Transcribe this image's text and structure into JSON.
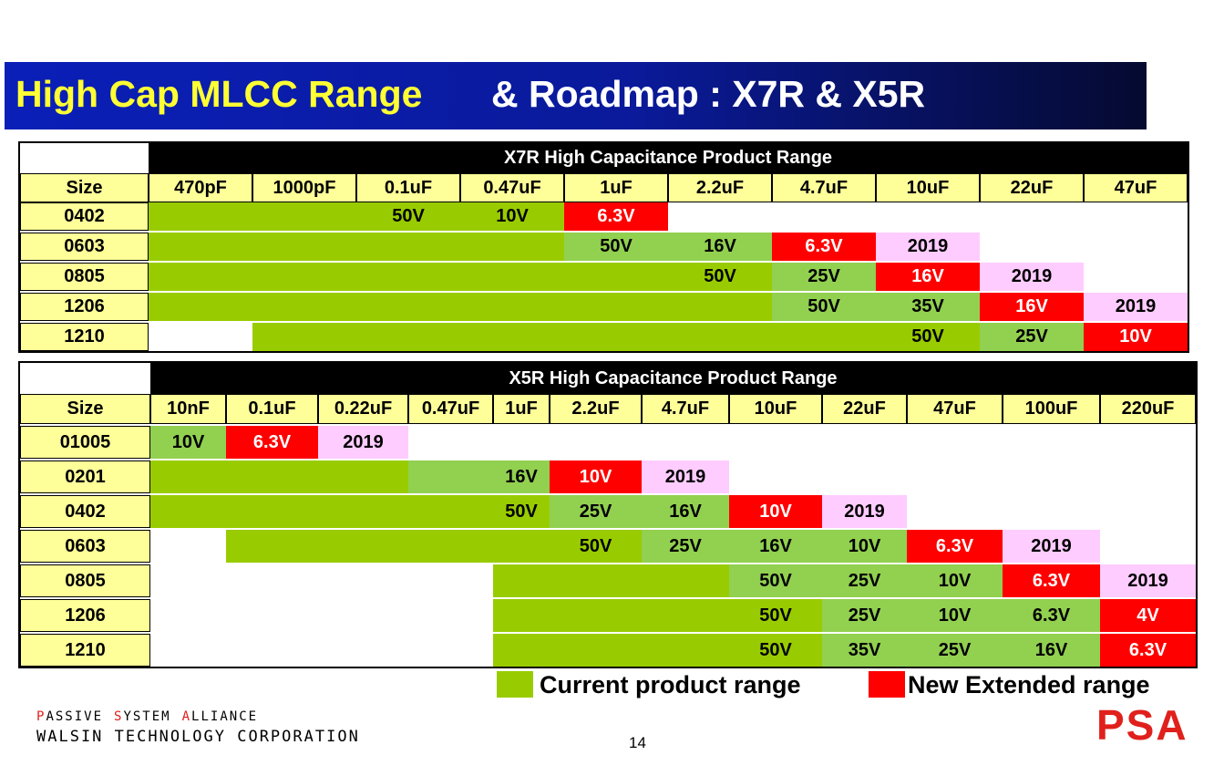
{
  "title": {
    "main": "High Cap MLCC Range",
    "sub": "& Roadmap : X7R & X5R"
  },
  "tables": [
    {
      "caption": "X7R  High Capacitance Product Range",
      "size_label": "Size",
      "columns": [
        "470pF",
        "1000pF",
        "0.1uF",
        "0.47uF",
        "1uF",
        "2.2uF",
        "4.7uF",
        "10uF",
        "22uF",
        "47uF"
      ],
      "rows": [
        {
          "size": "0402",
          "cells": [
            {
              "fill": "#99cc00"
            },
            {
              "fill": "#99cc00"
            },
            {
              "fill": "#99cc00",
              "text": "50V"
            },
            {
              "fill": "#99cc00",
              "text": "10V"
            },
            {
              "fill": "#ff0000",
              "text": "6.3V"
            },
            {
              "fill": "#ffffff"
            },
            {
              "fill": "#ffffff"
            },
            {
              "fill": "#ffffff"
            },
            {
              "fill": "#ffffff"
            },
            {
              "fill": "#ffffff"
            }
          ]
        },
        {
          "size": "0603",
          "cells": [
            {
              "fill": "#99cc00"
            },
            {
              "fill": "#99cc00"
            },
            {
              "fill": "#99cc00"
            },
            {
              "fill": "#99cc00"
            },
            {
              "fill": "#92d050",
              "text": "50V"
            },
            {
              "fill": "#92d050",
              "text": "16V"
            },
            {
              "fill": "#ff0000",
              "text": "6.3V"
            },
            {
              "fill": "#ffccff",
              "text": "2019"
            },
            {
              "fill": "#ffffff"
            },
            {
              "fill": "#ffffff"
            }
          ]
        },
        {
          "size": "0805",
          "cells": [
            {
              "fill": "#99cc00"
            },
            {
              "fill": "#99cc00"
            },
            {
              "fill": "#99cc00"
            },
            {
              "fill": "#99cc00"
            },
            {
              "fill": "#99cc00"
            },
            {
              "fill": "#99cc00",
              "text": "50V"
            },
            {
              "fill": "#92d050",
              "text": "25V"
            },
            {
              "fill": "#ff0000",
              "text": "16V"
            },
            {
              "fill": "#ffccff",
              "text": "2019"
            },
            {
              "fill": "#ffffff"
            }
          ]
        },
        {
          "size": "1206",
          "cells": [
            {
              "fill": "#99cc00"
            },
            {
              "fill": "#99cc00"
            },
            {
              "fill": "#99cc00"
            },
            {
              "fill": "#99cc00"
            },
            {
              "fill": "#99cc00"
            },
            {
              "fill": "#99cc00"
            },
            {
              "fill": "#92d050",
              "text": "50V"
            },
            {
              "fill": "#92d050",
              "text": "35V"
            },
            {
              "fill": "#ff0000",
              "text": "16V"
            },
            {
              "fill": "#ffccff",
              "text": "2019"
            }
          ]
        },
        {
          "size": "1210",
          "cells": [
            {
              "fill": "#ffffff"
            },
            {
              "fill": "#99cc00"
            },
            {
              "fill": "#99cc00"
            },
            {
              "fill": "#99cc00"
            },
            {
              "fill": "#99cc00"
            },
            {
              "fill": "#99cc00"
            },
            {
              "fill": "#99cc00"
            },
            {
              "fill": "#99cc00",
              "text": "50V"
            },
            {
              "fill": "#92d050",
              "text": "25V"
            },
            {
              "fill": "#ff0000",
              "text": "10V"
            }
          ]
        }
      ]
    },
    {
      "caption": "X5R  High Capacitance Product Range",
      "size_label": "Size",
      "columns": [
        "10nF",
        "0.1uF",
        "0.22uF",
        "0.47uF",
        "1uF",
        "2.2uF",
        "4.7uF",
        "10uF",
        "22uF",
        "47uF",
        "100uF",
        "220uF"
      ],
      "rows": [
        {
          "size": "01005",
          "cells": [
            {
              "fill": "#92d050",
              "text": "10V"
            },
            {
              "fill": "#ff0000",
              "text": "6.3V"
            },
            {
              "fill": "#ffccff",
              "text": "2019"
            },
            {
              "fill": "#ffffff"
            },
            {
              "fill": "#ffffff"
            },
            {
              "fill": "#ffffff"
            },
            {
              "fill": "#ffffff"
            },
            {
              "fill": "#ffffff"
            },
            {
              "fill": "#ffffff"
            },
            {
              "fill": "#ffffff"
            },
            {
              "fill": "#ffffff"
            },
            {
              "fill": "#ffffff"
            }
          ]
        },
        {
          "size": "0201",
          "cells": [
            {
              "fill": "#99cc00"
            },
            {
              "fill": "#99cc00"
            },
            {
              "fill": "#99cc00"
            },
            {
              "fill": "#92d050"
            },
            {
              "fill": "#92d050",
              "text": "16V"
            },
            {
              "fill": "#ff0000",
              "text": "10V"
            },
            {
              "fill": "#ffccff",
              "text": "2019"
            },
            {
              "fill": "#ffffff"
            },
            {
              "fill": "#ffffff"
            },
            {
              "fill": "#ffffff"
            },
            {
              "fill": "#ffffff"
            },
            {
              "fill": "#ffffff"
            }
          ]
        },
        {
          "size": "0402",
          "cells": [
            {
              "fill": "#99cc00"
            },
            {
              "fill": "#99cc00"
            },
            {
              "fill": "#99cc00"
            },
            {
              "fill": "#99cc00"
            },
            {
              "fill": "#99cc00",
              "text": "50V"
            },
            {
              "fill": "#92d050",
              "text": "25V"
            },
            {
              "fill": "#92d050",
              "text": "16V"
            },
            {
              "fill": "#ff0000",
              "text": "10V"
            },
            {
              "fill": "#ffccff",
              "text": "2019"
            },
            {
              "fill": "#ffffff"
            },
            {
              "fill": "#ffffff"
            },
            {
              "fill": "#ffffff"
            }
          ]
        },
        {
          "size": "0603",
          "cells": [
            {
              "fill": "#ffffff"
            },
            {
              "fill": "#99cc00"
            },
            {
              "fill": "#99cc00"
            },
            {
              "fill": "#99cc00"
            },
            {
              "fill": "#99cc00"
            },
            {
              "fill": "#99cc00",
              "text": "50V"
            },
            {
              "fill": "#92d050",
              "text": "25V"
            },
            {
              "fill": "#92d050",
              "text": "16V"
            },
            {
              "fill": "#92d050",
              "text": "10V"
            },
            {
              "fill": "#ff0000",
              "text": "6.3V"
            },
            {
              "fill": "#ffccff",
              "text": "2019"
            },
            {
              "fill": "#ffffff"
            }
          ]
        },
        {
          "size": "0805",
          "cells": [
            {
              "fill": "#ffffff"
            },
            {
              "fill": "#ffffff"
            },
            {
              "fill": "#ffffff"
            },
            {
              "fill": "#ffffff"
            },
            {
              "fill": "#99cc00"
            },
            {
              "fill": "#99cc00"
            },
            {
              "fill": "#99cc00"
            },
            {
              "fill": "#92d050",
              "text": "50V"
            },
            {
              "fill": "#92d050",
              "text": "25V"
            },
            {
              "fill": "#92d050",
              "text": "10V"
            },
            {
              "fill": "#ff0000",
              "text": "6.3V"
            },
            {
              "fill": "#ffccff",
              "text": "2019"
            }
          ]
        },
        {
          "size": "1206",
          "cells": [
            {
              "fill": "#ffffff"
            },
            {
              "fill": "#ffffff"
            },
            {
              "fill": "#ffffff"
            },
            {
              "fill": "#ffffff"
            },
            {
              "fill": "#99cc00"
            },
            {
              "fill": "#99cc00"
            },
            {
              "fill": "#99cc00"
            },
            {
              "fill": "#99cc00",
              "text": "50V"
            },
            {
              "fill": "#92d050",
              "text": "25V"
            },
            {
              "fill": "#92d050",
              "text": "10V"
            },
            {
              "fill": "#92d050",
              "text": "6.3V"
            },
            {
              "fill": "#ff0000",
              "text": "4V"
            }
          ]
        },
        {
          "size": "1210",
          "cells": [
            {
              "fill": "#ffffff"
            },
            {
              "fill": "#ffffff"
            },
            {
              "fill": "#ffffff"
            },
            {
              "fill": "#ffffff"
            },
            {
              "fill": "#99cc00"
            },
            {
              "fill": "#99cc00"
            },
            {
              "fill": "#99cc00"
            },
            {
              "fill": "#99cc00",
              "text": "50V"
            },
            {
              "fill": "#92d050",
              "text": "35V"
            },
            {
              "fill": "#92d050",
              "text": "25V"
            },
            {
              "fill": "#92d050",
              "text": "16V"
            },
            {
              "fill": "#ff0000",
              "text": "6.3V"
            }
          ]
        }
      ]
    }
  ],
  "legend": [
    {
      "label": "Current product range",
      "color": "#99cc00"
    },
    {
      "label": "New Extended range",
      "color": "#ff0000"
    }
  ],
  "footer": {
    "alliance": [
      "PASSIVE",
      "SYSTEM",
      "ALLIANCE"
    ],
    "company": "WALSIN TECHNOLOGY CORPORATION",
    "page": "14",
    "logo": "PSA"
  }
}
